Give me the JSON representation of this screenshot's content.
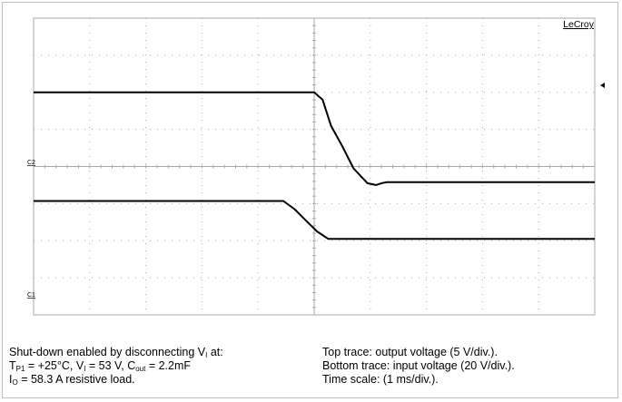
{
  "brand": "LeCroy",
  "caption_left": {
    "line1_prefix": "Shut-down enabled by disconnecting V",
    "line1_sub": "I",
    "line1_suffix": " at:",
    "line2_a": "T",
    "line2_a_sub": "P1",
    "line2_b": " = +25°C, V",
    "line2_b_sub": "I",
    "line2_c": " = 53 V, C",
    "line2_c_sub": "out",
    "line2_d": " = 2.2mF",
    "line3_a": "I",
    "line3_a_sub": "O",
    "line3_b": " = 58.3 A resistive load."
  },
  "caption_right": {
    "line1": "Top trace: output voltage (5 V/div.).",
    "line2": "Bottom trace: input voltage (20 V/div.).",
    "line3": "Time scale: (1 ms/div.)."
  },
  "colors": {
    "trace": "#000000",
    "grid": "#a8a8a8",
    "frame": "#bdbdbd"
  },
  "chart_data": {
    "type": "line",
    "grid": true,
    "x_unit": "ms",
    "xlim": [
      0,
      10
    ],
    "ylim": [
      -4,
      4
    ],
    "channel_labels": [
      "C2",
      "C1"
    ],
    "series": [
      {
        "name": "Top trace: output voltage (5 V/div.)",
        "x": [
          0,
          5.0,
          5.15,
          5.3,
          5.5,
          5.7,
          5.95,
          6.1,
          6.2,
          6.3,
          10
        ],
        "y": [
          2.0,
          2.0,
          1.8,
          1.1,
          0.55,
          -0.05,
          -0.45,
          -0.5,
          -0.45,
          -0.42,
          -0.42
        ]
      },
      {
        "name": "Bottom trace: input voltage (20 V/div.)",
        "x": [
          0,
          4.45,
          4.65,
          4.85,
          5.05,
          5.25,
          10
        ],
        "y": [
          -0.93,
          -0.93,
          -1.15,
          -1.45,
          -1.75,
          -1.95,
          -1.95
        ]
      }
    ]
  }
}
